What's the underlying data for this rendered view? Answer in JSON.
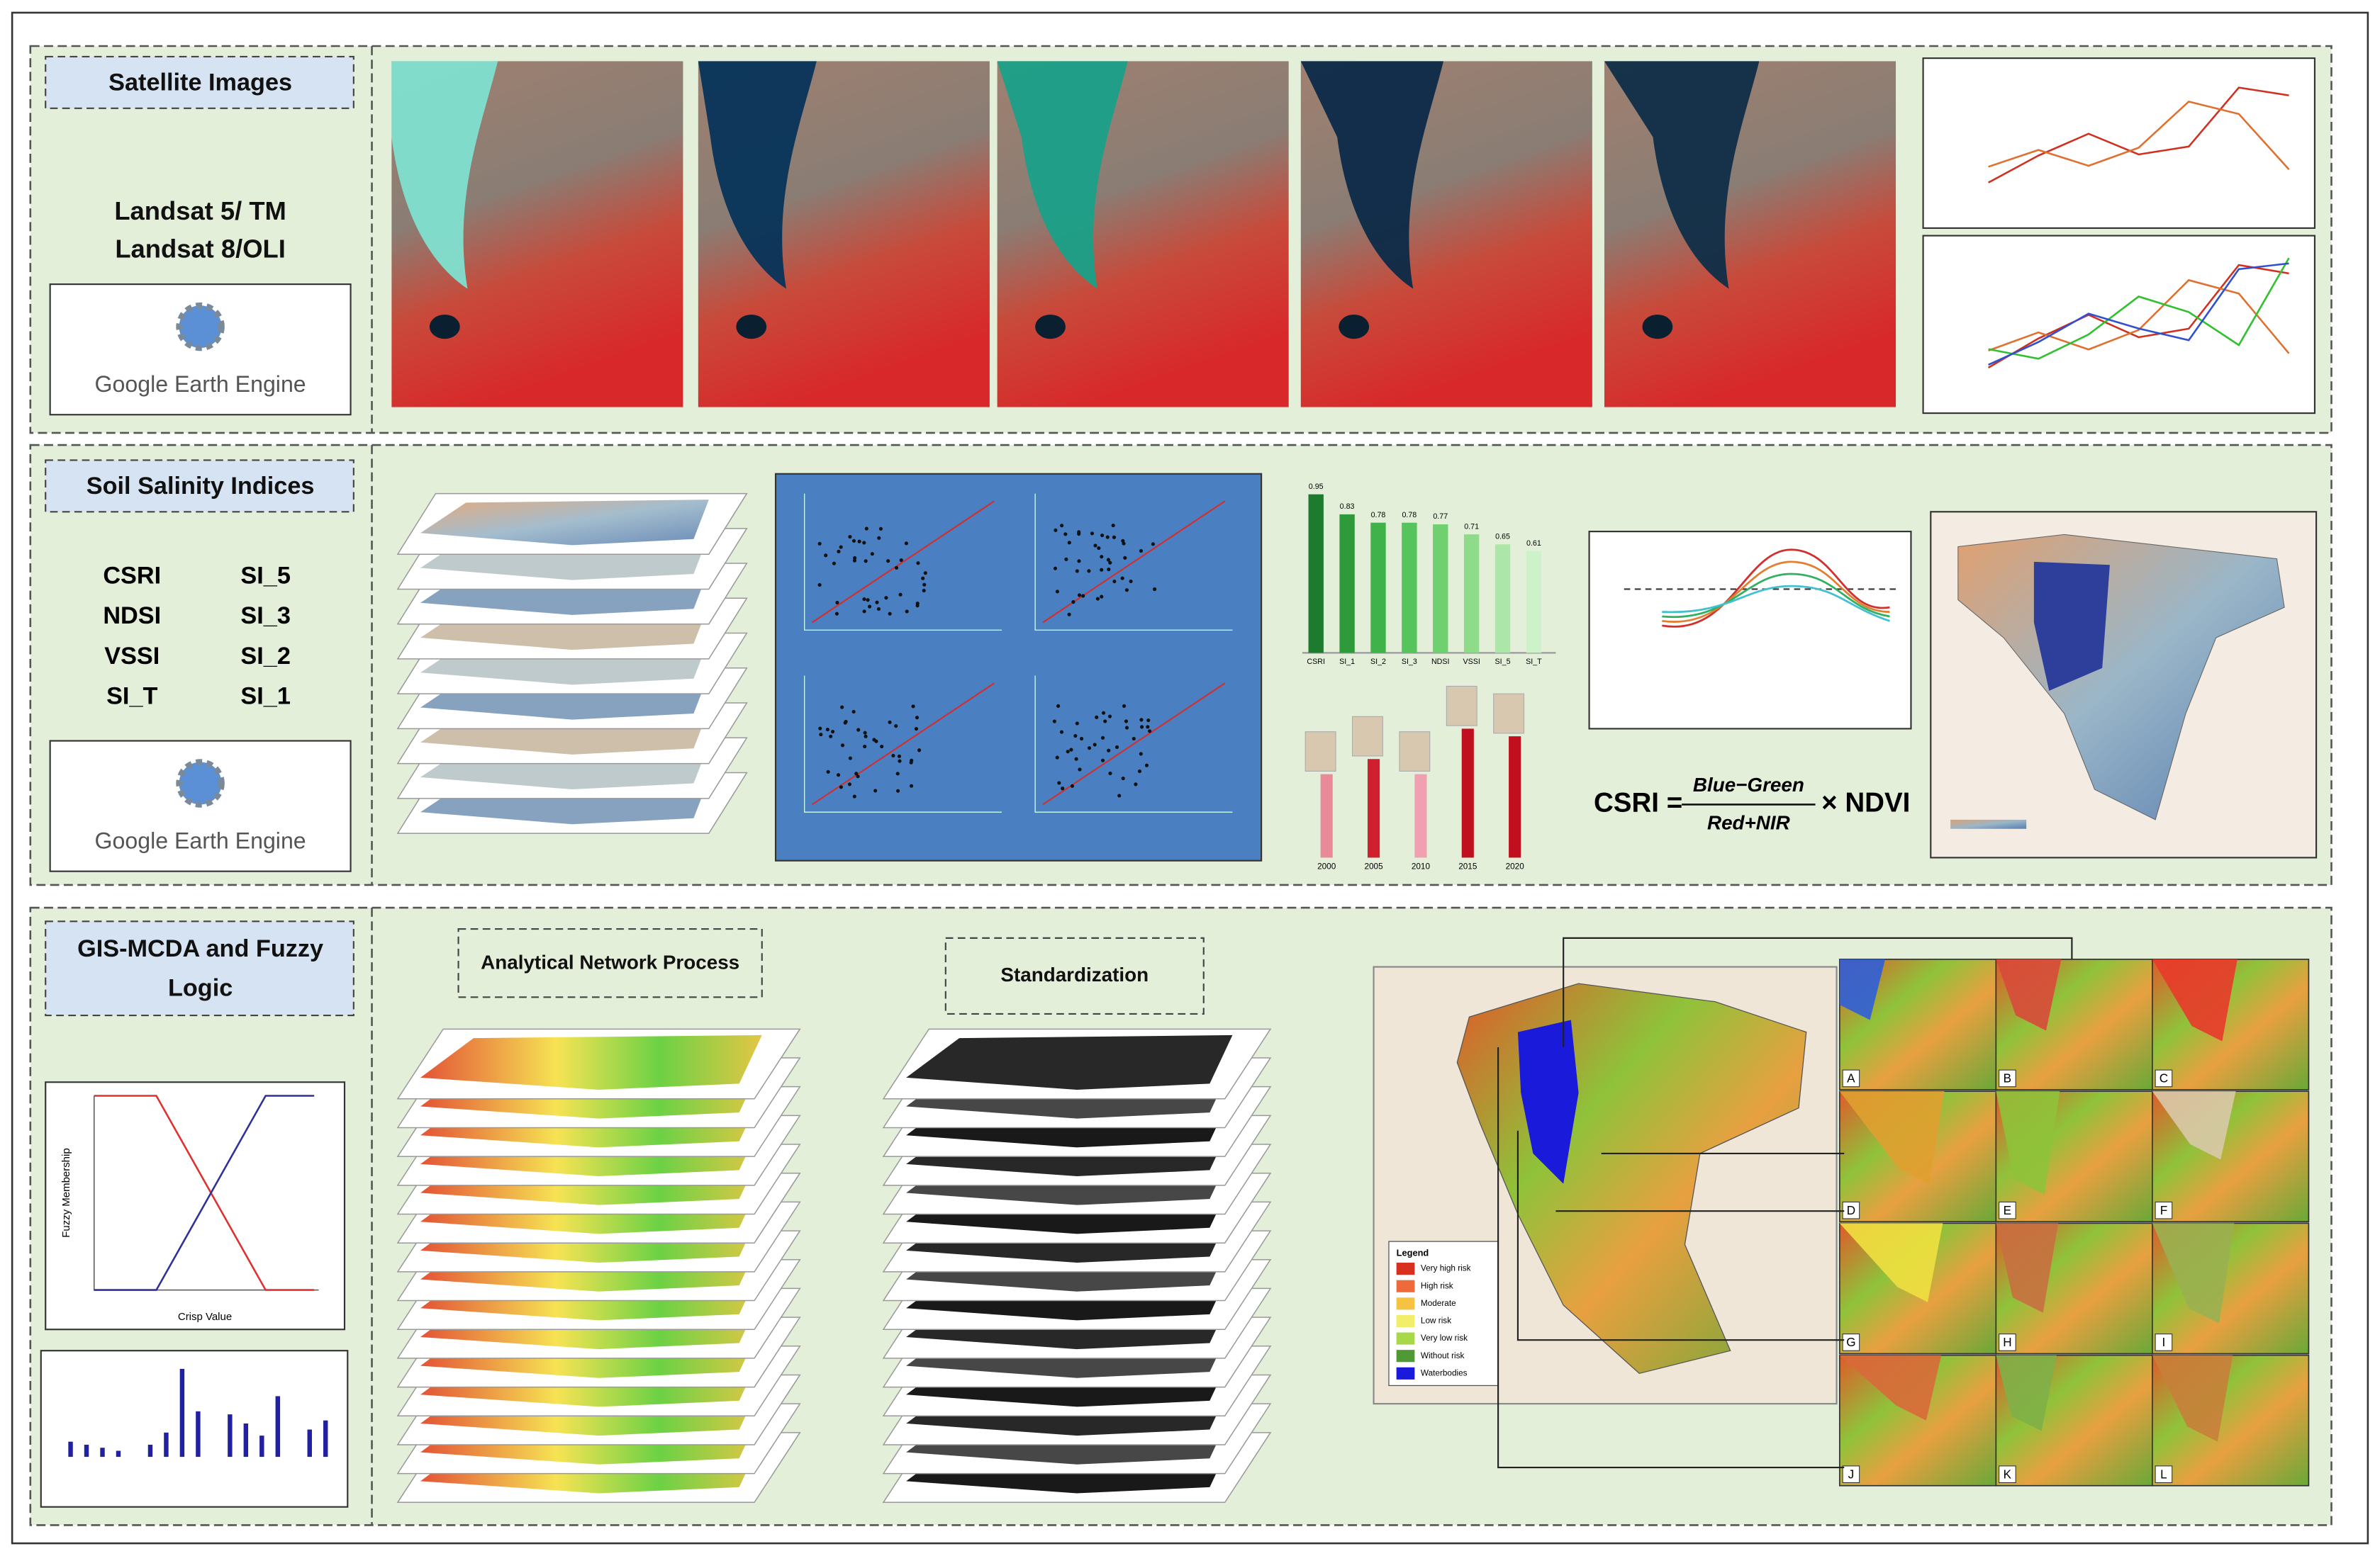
{
  "panels": [
    {
      "title": "Satellite Images",
      "sensors": [
        "Landsat 5/ TM",
        "Landsat 8/OLI"
      ],
      "platform": "Google Earth Engine"
    },
    {
      "title": "Soil Salinity Indices",
      "indices": [
        "CSRI",
        "SI_5",
        "NDSI",
        "SI_3",
        "VSSI",
        "SI_2",
        "SI_T",
        "SI_1"
      ],
      "platform": "Google Earth Engine",
      "formula": {
        "lhs": "CSRI =",
        "numerator": "Blue−Green",
        "denominator": "Red+NIR",
        "rhs": "× NDVI"
      },
      "correlation_chart": {
        "type": "bar",
        "categories": [
          "CSRI",
          "SI_1",
          "SI_2",
          "SI_3",
          "NDSI",
          "VSSI",
          "SI_5",
          "SI_T"
        ],
        "values": [
          0.95,
          0.83,
          0.78,
          0.78,
          0.77,
          0.71,
          0.65,
          0.61
        ],
        "colors": [
          "#1e7a2e",
          "#2e9a3a",
          "#3fb24a",
          "#55c45c",
          "#6fd06f",
          "#8edb8a",
          "#acE6a8",
          "#cdf1c9"
        ],
        "ylim": [
          0,
          1
        ]
      },
      "years": [
        "2000",
        "2005",
        "2010",
        "2015",
        "2020"
      ]
    },
    {
      "title_lines": [
        "GIS-MCDA and Fuzzy",
        "Logic"
      ],
      "steps": [
        "Analytical Network Process",
        "Standardization"
      ],
      "fuzzy_x_label": "Crisp Value",
      "fuzzy_y_label": "Fuzzy Membership",
      "legend": {
        "title": "Legend",
        "items": [
          {
            "name": "Very high risk",
            "color": "#d7301f"
          },
          {
            "name": "High risk",
            "color": "#ef6a3a"
          },
          {
            "name": "Moderate",
            "color": "#f5c242"
          },
          {
            "name": "Low risk",
            "color": "#f2ee6a"
          },
          {
            "name": "Very low risk",
            "color": "#a6d84a"
          },
          {
            "name": "Without risk",
            "color": "#4f9a35"
          },
          {
            "name": "Waterbodies",
            "color": "#1a1adb"
          }
        ]
      },
      "zoom_labels": [
        "A",
        "B",
        "C",
        "D",
        "E",
        "F",
        "G",
        "H",
        "I",
        "J",
        "K",
        "L"
      ]
    }
  ]
}
